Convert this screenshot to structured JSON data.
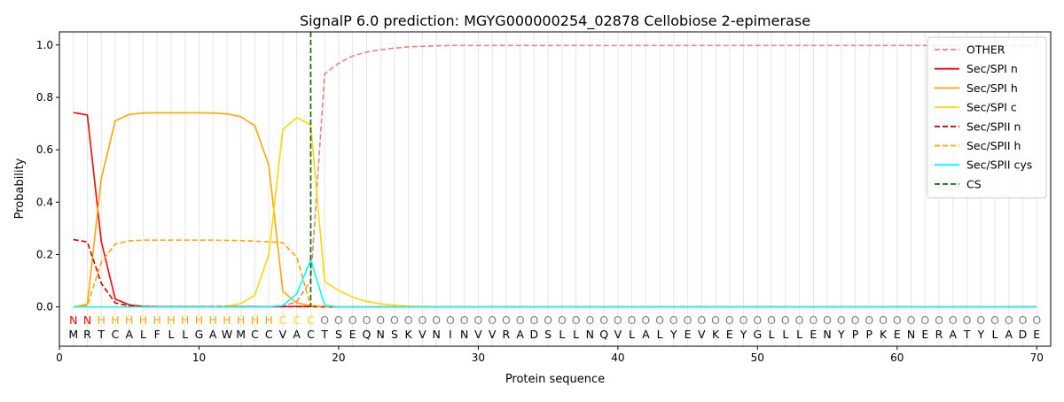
{
  "chart_data": {
    "type": "line",
    "title": "SignalP 6.0 prediction: MGYG000000254_02878 Cellobiose 2-epimerase",
    "xlabel": "Protein sequence",
    "ylabel": "Probability",
    "xlim": [
      0,
      71
    ],
    "ylim": [
      -0.15,
      1.05
    ],
    "x_ticks": [
      0,
      10,
      20,
      30,
      40,
      50,
      60,
      70
    ],
    "y_ticks": [
      0.0,
      0.2,
      0.4,
      0.6,
      0.8,
      1.0
    ],
    "x_tick_labels": [
      "0",
      "10",
      "20",
      "30",
      "40",
      "50",
      "60",
      "70"
    ],
    "y_tick_labels": [
      "0.0",
      "0.2",
      "0.4",
      "0.6",
      "0.8",
      "1.0"
    ],
    "grid": "vertical at each residue",
    "legend_position": "top-right",
    "sequence": [
      "M",
      "R",
      "T",
      "C",
      "A",
      "L",
      "F",
      "L",
      "L",
      "G",
      "A",
      "W",
      "M",
      "C",
      "C",
      "V",
      "A",
      "C",
      "T",
      "S",
      "E",
      "Q",
      "N",
      "S",
      "K",
      "V",
      "N",
      "I",
      "N",
      "V",
      "V",
      "R",
      "A",
      "D",
      "S",
      "L",
      "L",
      "N",
      "Q",
      "V",
      "L",
      "A",
      "L",
      "Y",
      "E",
      "V",
      "K",
      "E",
      "Y",
      "G",
      "L",
      "L",
      "L",
      "E",
      "N",
      "Y",
      "P",
      "P",
      "K",
      "E",
      "N",
      "E",
      "R",
      "A",
      "T",
      "Y",
      "L",
      "A",
      "D",
      "E"
    ],
    "region_labels": [
      "N",
      "N",
      "H",
      "H",
      "H",
      "H",
      "H",
      "H",
      "H",
      "H",
      "H",
      "H",
      "H",
      "H",
      "H",
      "C",
      "C",
      "C",
      "O",
      "O",
      "O",
      "O",
      "O",
      "O",
      "O",
      "O",
      "O",
      "O",
      "O",
      "O",
      "O",
      "O",
      "O",
      "O",
      "O",
      "O",
      "O",
      "O",
      "O",
      "O",
      "O",
      "O",
      "O",
      "O",
      "O",
      "O",
      "O",
      "O",
      "O",
      "O",
      "O",
      "O",
      "O",
      "O",
      "O",
      "O",
      "O",
      "O",
      "O",
      "O",
      "O",
      "O",
      "O",
      "O",
      "O",
      "O",
      "O",
      "O",
      "O",
      "O"
    ],
    "region_colors": {
      "N": "#ff0000",
      "H": "#ffa500",
      "C": "#ffd700",
      "O": "#808080"
    },
    "cleavage_site": 18,
    "series": [
      {
        "name": "OTHER",
        "color": "#f08080",
        "dash": "dashed",
        "values": [
          0.0,
          0.0,
          0.0,
          0.0,
          0.0,
          0.0,
          0.0,
          0.0,
          0.0,
          0.0,
          0.0,
          0.0,
          0.0,
          0.0,
          0.0,
          0.003,
          0.02,
          0.1,
          0.89,
          0.93,
          0.958,
          0.973,
          0.982,
          0.988,
          0.993,
          0.995,
          0.997,
          0.998,
          0.998,
          0.998,
          0.998,
          0.998,
          0.998,
          0.998,
          0.998,
          0.998,
          0.998,
          0.998,
          0.998,
          0.998,
          0.998,
          0.998,
          0.998,
          0.998,
          0.998,
          0.998,
          0.998,
          0.998,
          0.998,
          0.998,
          0.998,
          0.998,
          0.998,
          0.998,
          0.998,
          0.998,
          0.998,
          0.998,
          0.998,
          0.998,
          0.998,
          0.998,
          0.998,
          0.998,
          0.998,
          0.998,
          0.998,
          0.998,
          0.998,
          0.998
        ]
      },
      {
        "name": "Sec/SPI n",
        "color": "#ff0000",
        "dash": "solid",
        "values": [
          0.742,
          0.733,
          0.25,
          0.03,
          0.008,
          0.002,
          0.001,
          0.001,
          0.001,
          0.001,
          0.001,
          0.001,
          0.001,
          0.001,
          0.001,
          0.001,
          0.002,
          0.002,
          0.001,
          0.0,
          0.0,
          0.0,
          0.0,
          0.0,
          0.0,
          0.0,
          0.0,
          0.0,
          0.0,
          0.0,
          0.0,
          0.0,
          0.0,
          0.0,
          0.0,
          0.0,
          0.0,
          0.0,
          0.0,
          0.0,
          0.0,
          0.0,
          0.0,
          0.0,
          0.0,
          0.0,
          0.0,
          0.0,
          0.0,
          0.0,
          0.0,
          0.0,
          0.0,
          0.0,
          0.0,
          0.0,
          0.0,
          0.0,
          0.0,
          0.0,
          0.0,
          0.0,
          0.0,
          0.0,
          0.0,
          0.0,
          0.0,
          0.0,
          0.0,
          0.0
        ]
      },
      {
        "name": "Sec/SPI h",
        "color": "#ffa500",
        "dash": "solid",
        "values": [
          0.0,
          0.01,
          0.49,
          0.71,
          0.735,
          0.74,
          0.741,
          0.741,
          0.741,
          0.741,
          0.74,
          0.737,
          0.726,
          0.692,
          0.54,
          0.06,
          0.015,
          0.005,
          0.001,
          0.0,
          0.0,
          0.0,
          0.0,
          0.0,
          0.0,
          0.0,
          0.0,
          0.0,
          0.0,
          0.0,
          0.0,
          0.0,
          0.0,
          0.0,
          0.0,
          0.0,
          0.0,
          0.0,
          0.0,
          0.0,
          0.0,
          0.0,
          0.0,
          0.0,
          0.0,
          0.0,
          0.0,
          0.0,
          0.0,
          0.0,
          0.0,
          0.0,
          0.0,
          0.0,
          0.0,
          0.0,
          0.0,
          0.0,
          0.0,
          0.0,
          0.0,
          0.0,
          0.0,
          0.0,
          0.0,
          0.0,
          0.0,
          0.0,
          0.0,
          0.0
        ]
      },
      {
        "name": "Sec/SPI c",
        "color": "#ffd700",
        "dash": "solid",
        "values": [
          0.0,
          0.0,
          0.0,
          0.0,
          0.0,
          0.0,
          0.0,
          0.0,
          0.0,
          0.0,
          0.001,
          0.003,
          0.013,
          0.045,
          0.2,
          0.677,
          0.723,
          0.695,
          0.097,
          0.063,
          0.037,
          0.021,
          0.012,
          0.006,
          0.003,
          0.002,
          0.001,
          0.0,
          0.0,
          0.0,
          0.0,
          0.0,
          0.0,
          0.0,
          0.0,
          0.0,
          0.0,
          0.0,
          0.0,
          0.0,
          0.0,
          0.0,
          0.0,
          0.0,
          0.0,
          0.0,
          0.0,
          0.0,
          0.0,
          0.0,
          0.0,
          0.0,
          0.0,
          0.0,
          0.0,
          0.0,
          0.0,
          0.0,
          0.0,
          0.0,
          0.0,
          0.0,
          0.0,
          0.0,
          0.0,
          0.0,
          0.0,
          0.0,
          0.0,
          0.0
        ]
      },
      {
        "name": "Sec/SPII n",
        "color": "#cc0000",
        "dash": "dashed",
        "values": [
          0.257,
          0.248,
          0.09,
          0.015,
          0.004,
          0.002,
          0.001,
          0.001,
          0.001,
          0.001,
          0.001,
          0.001,
          0.001,
          0.001,
          0.001,
          0.001,
          0.001,
          0.001,
          0.0,
          0.0,
          0.0,
          0.0,
          0.0,
          0.0,
          0.0,
          0.0,
          0.0,
          0.0,
          0.0,
          0.0,
          0.0,
          0.0,
          0.0,
          0.0,
          0.0,
          0.0,
          0.0,
          0.0,
          0.0,
          0.0,
          0.0,
          0.0,
          0.0,
          0.0,
          0.0,
          0.0,
          0.0,
          0.0,
          0.0,
          0.0,
          0.0,
          0.0,
          0.0,
          0.0,
          0.0,
          0.0,
          0.0,
          0.0,
          0.0,
          0.0,
          0.0,
          0.0,
          0.0,
          0.0,
          0.0,
          0.0,
          0.0,
          0.0,
          0.0,
          0.0
        ]
      },
      {
        "name": "Sec/SPII h",
        "color": "#ffa500",
        "dash": "dashed",
        "values": [
          0.0,
          0.005,
          0.17,
          0.24,
          0.252,
          0.255,
          0.255,
          0.255,
          0.255,
          0.255,
          0.255,
          0.254,
          0.253,
          0.251,
          0.249,
          0.245,
          0.19,
          0.003,
          0.001,
          0.0,
          0.0,
          0.0,
          0.0,
          0.0,
          0.0,
          0.0,
          0.0,
          0.0,
          0.0,
          0.0,
          0.0,
          0.0,
          0.0,
          0.0,
          0.0,
          0.0,
          0.0,
          0.0,
          0.0,
          0.0,
          0.0,
          0.0,
          0.0,
          0.0,
          0.0,
          0.0,
          0.0,
          0.0,
          0.0,
          0.0,
          0.0,
          0.0,
          0.0,
          0.0,
          0.0,
          0.0,
          0.0,
          0.0,
          0.0,
          0.0,
          0.0,
          0.0,
          0.0,
          0.0,
          0.0,
          0.0,
          0.0,
          0.0,
          0.0,
          0.0
        ]
      },
      {
        "name": "Sec/SPII cys",
        "color": "#00ffff",
        "dash": "solid",
        "values": [
          0.0,
          0.0,
          0.0,
          0.0,
          0.0,
          0.0,
          0.0,
          0.0,
          0.0,
          0.0,
          0.0,
          0.0,
          0.0,
          0.0,
          0.001,
          0.005,
          0.05,
          0.18,
          0.006,
          0.0,
          0.0,
          0.0,
          0.0,
          0.0,
          0.0,
          0.0,
          0.0,
          0.0,
          0.0,
          0.0,
          0.0,
          0.0,
          0.0,
          0.0,
          0.0,
          0.0,
          0.0,
          0.0,
          0.0,
          0.0,
          0.0,
          0.0,
          0.0,
          0.0,
          0.0,
          0.0,
          0.0,
          0.0,
          0.0,
          0.0,
          0.0,
          0.0,
          0.0,
          0.0,
          0.0,
          0.0,
          0.0,
          0.0,
          0.0,
          0.0,
          0.0,
          0.0,
          0.0,
          0.0,
          0.0,
          0.0,
          0.0,
          0.0,
          0.0,
          0.0
        ]
      }
    ],
    "cs_legend": {
      "name": "CS",
      "color": "#006400",
      "dash": "dashed"
    }
  }
}
